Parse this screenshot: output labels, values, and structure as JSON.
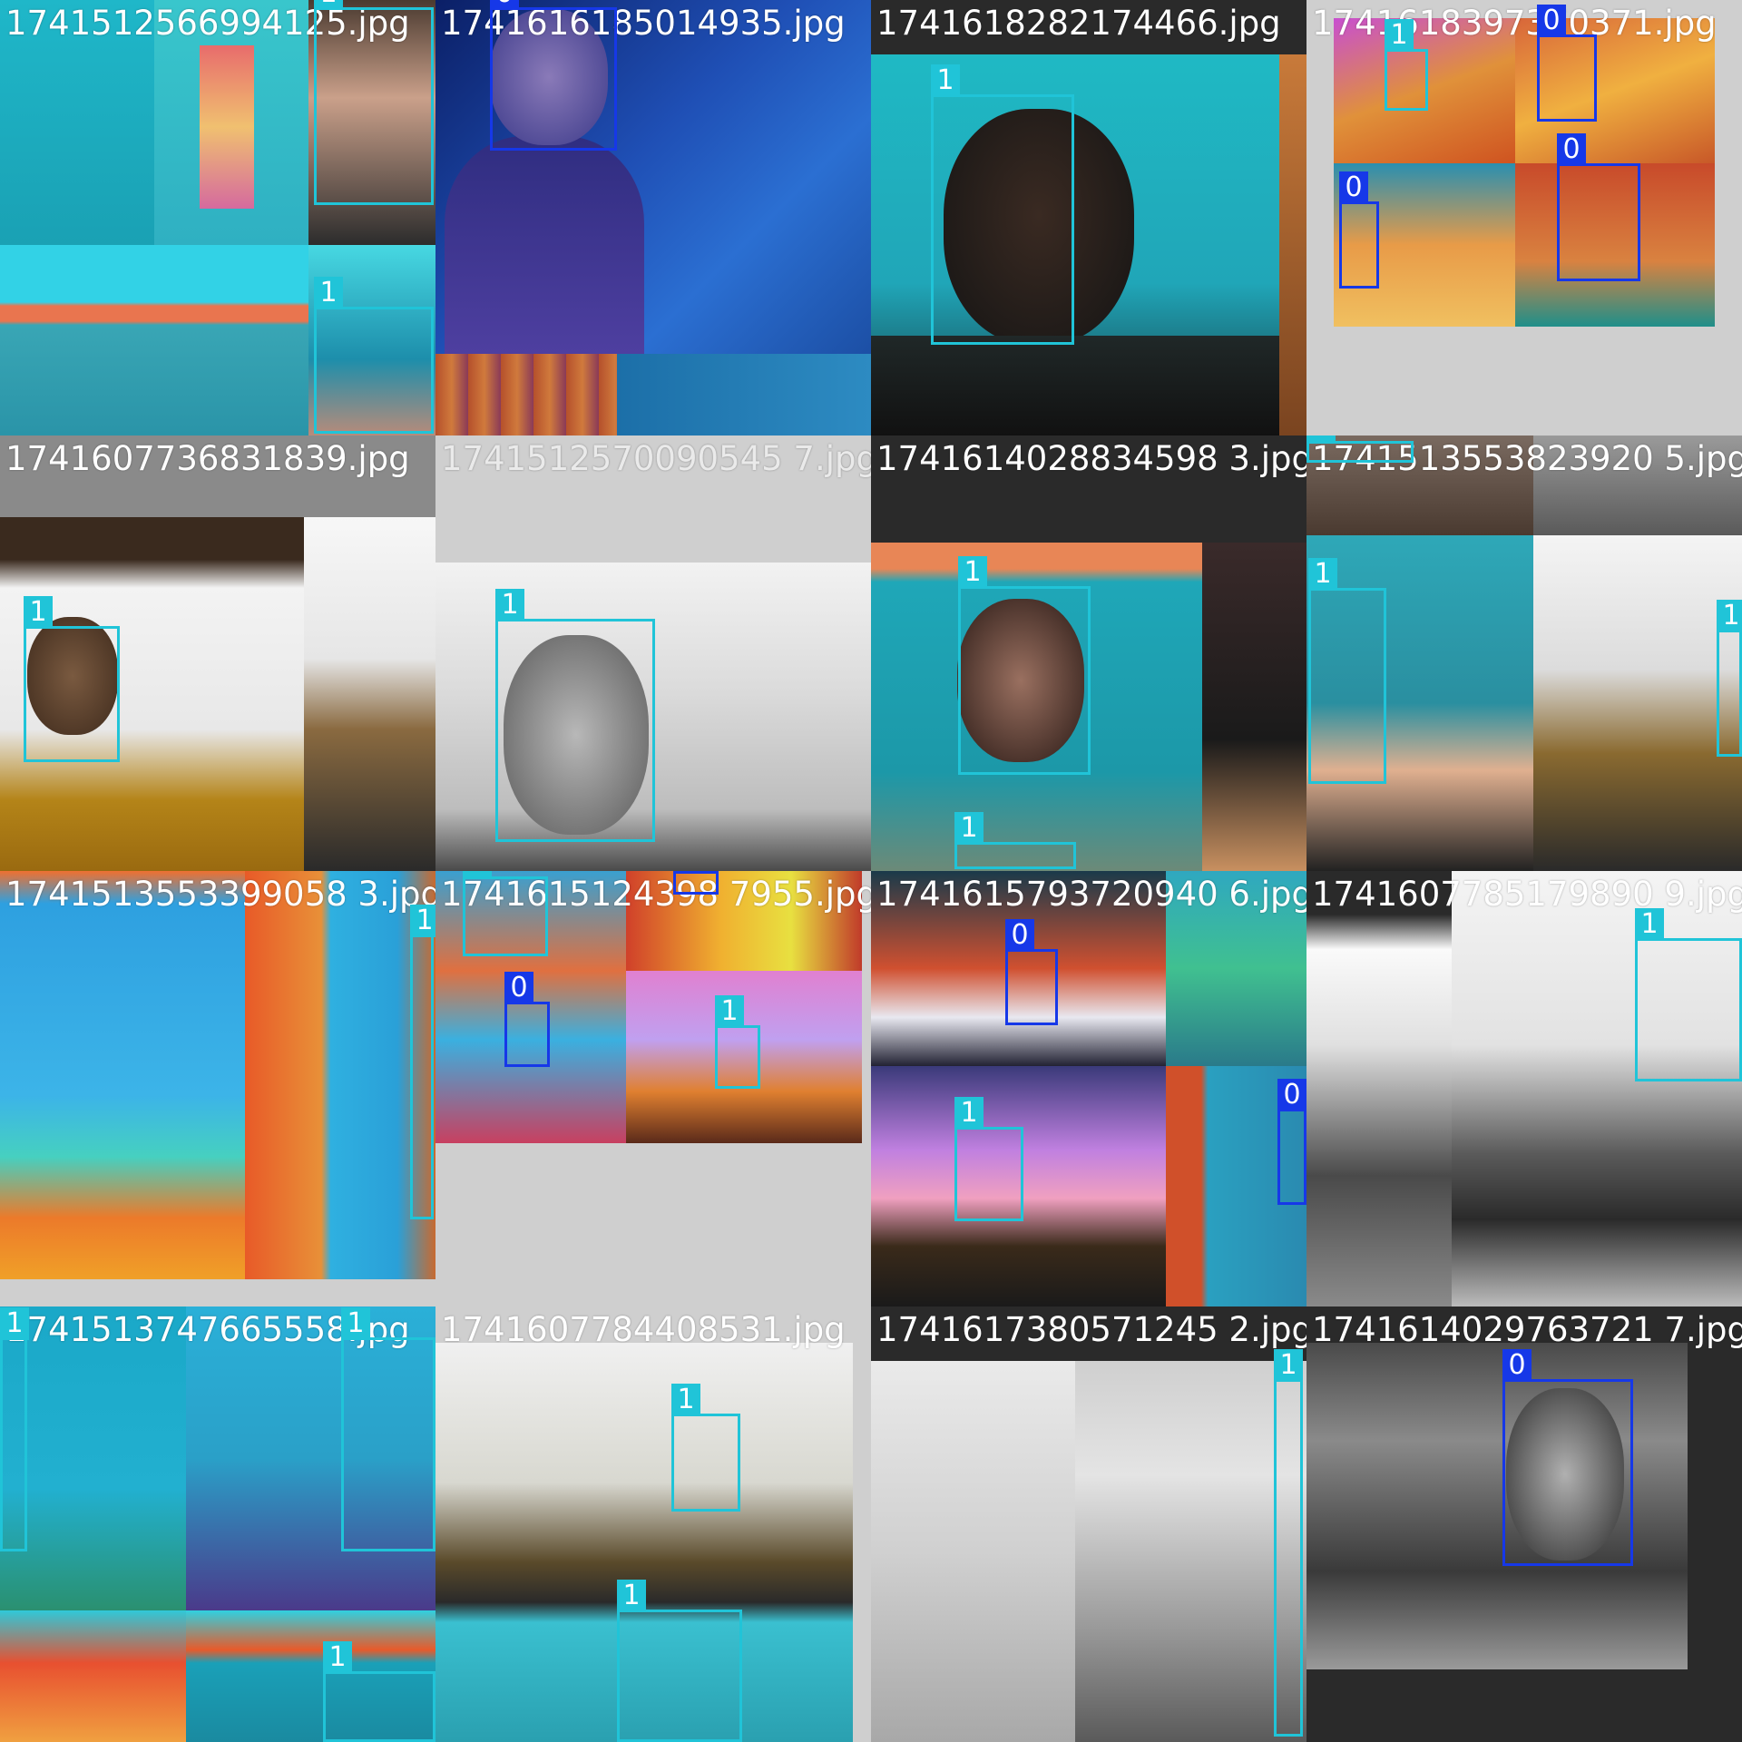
{
  "colors": {
    "class_1": "#20c4d8",
    "class_0": "#1638e8"
  },
  "tiles": [
    {
      "filename": "1741512566994125",
      "filename_suffix": ".jpg",
      "labels": [
        "1",
        "1"
      ]
    },
    {
      "filename": "1741616185014935.jpg",
      "labels": [
        "0"
      ]
    },
    {
      "filename": "1741618282174466.jpg",
      "labels": [
        "1"
      ]
    },
    {
      "filename": "1741618397370371.jpg",
      "labels": [
        "1",
        "0",
        "0",
        "0"
      ]
    },
    {
      "filename": "1741607736831839.jpg",
      "labels": [
        "1"
      ]
    },
    {
      "filename": "1741512570090545 7.jpg",
      "labels": [
        "1"
      ]
    },
    {
      "filename": "1741614028834598 3.jpg",
      "labels": [
        "1",
        "1"
      ]
    },
    {
      "filename": "1741513553823920 5.jpg",
      "labels": [
        "1",
        "1",
        "1"
      ]
    },
    {
      "filename": "1741513553399058 3.jpg",
      "labels": [
        "1"
      ]
    },
    {
      "filename": "1741615124398 7955.jpg",
      "labels": [
        "1",
        "0",
        "0",
        "1"
      ]
    },
    {
      "filename": "1741615793720940 6.jpg",
      "labels": [
        "0",
        "1",
        "0"
      ]
    },
    {
      "filename": "1741607785179890 9.jpg",
      "labels": [
        "1"
      ]
    },
    {
      "filename": "1741513747665558.jpg",
      "labels": [
        "1",
        "1",
        "1"
      ]
    },
    {
      "filename": "1741607784408531.jpg",
      "labels": [
        "1",
        "1"
      ]
    },
    {
      "filename": "1741617380571245 2.jpg",
      "labels": [
        "1"
      ]
    },
    {
      "filename": "1741614029763721 7.jpg",
      "labels": [
        "0"
      ]
    }
  ]
}
